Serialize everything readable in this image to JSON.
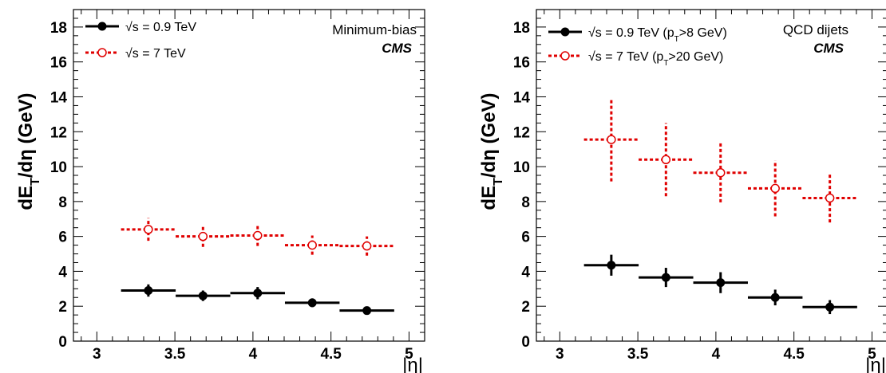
{
  "chart_data": [
    {
      "type": "scatter",
      "ylabel": "dE_T/dη (GeV)",
      "xlabel": "|η|",
      "xlim": [
        2.85,
        5.1
      ],
      "ylim": [
        0,
        19
      ],
      "xticks": [
        "3",
        "3.5",
        "4",
        "4.5",
        "5"
      ],
      "yticks": [
        "0",
        "2",
        "4",
        "6",
        "8",
        "10",
        "12",
        "14",
        "16",
        "18"
      ],
      "annotation": "Minimum-bias",
      "experiment": "CMS",
      "series": [
        {
          "name": "√s = 0.9 TeV",
          "color": "#000000",
          "marker": "filled-circle",
          "line": "solid",
          "x": [
            3.33,
            3.68,
            4.03,
            4.38,
            4.73
          ],
          "xerr": [
            0.175,
            0.175,
            0.175,
            0.175,
            0.175
          ],
          "y": [
            2.9,
            2.6,
            2.75,
            2.2,
            1.75
          ],
          "yerr": [
            0.35,
            0.3,
            0.35,
            0.25,
            0.2
          ]
        },
        {
          "name": "√s = 7 TeV",
          "color": "#e00000",
          "marker": "open-circle",
          "line": "dotted",
          "x": [
            3.33,
            3.68,
            4.03,
            4.38,
            4.73
          ],
          "xerr": [
            0.175,
            0.175,
            0.175,
            0.175,
            0.175
          ],
          "y": [
            6.4,
            6.0,
            6.05,
            5.5,
            5.45
          ],
          "yerr": [
            0.65,
            0.6,
            0.6,
            0.55,
            0.55
          ]
        }
      ]
    },
    {
      "type": "scatter",
      "ylabel": "dE_T/dη (GeV)",
      "xlabel": "|η|",
      "xlim": [
        2.85,
        5.1
      ],
      "ylim": [
        0,
        19
      ],
      "xticks": [
        "3",
        "3.5",
        "4",
        "4.5",
        "5"
      ],
      "yticks": [
        "0",
        "2",
        "4",
        "6",
        "8",
        "10",
        "12",
        "14",
        "16",
        "18"
      ],
      "annotation": "QCD dijets",
      "experiment": "CMS",
      "series": [
        {
          "name": "√s = 0.9 TeV (p_T>8 GeV)",
          "color": "#000000",
          "marker": "filled-circle",
          "line": "solid",
          "x": [
            3.33,
            3.68,
            4.03,
            4.38,
            4.73
          ],
          "xerr": [
            0.175,
            0.175,
            0.175,
            0.175,
            0.175
          ],
          "y": [
            4.35,
            3.65,
            3.35,
            2.5,
            1.95
          ],
          "yerr": [
            0.6,
            0.55,
            0.6,
            0.45,
            0.4
          ]
        },
        {
          "name": "√s = 7 TeV (p_T>20 GeV)",
          "color": "#e00000",
          "marker": "open-circle",
          "line": "dotted",
          "x": [
            3.33,
            3.68,
            4.03,
            4.38,
            4.73
          ],
          "xerr": [
            0.175,
            0.175,
            0.175,
            0.175,
            0.175
          ],
          "y": [
            11.55,
            10.4,
            9.65,
            8.75,
            8.2
          ],
          "yerr": [
            2.4,
            2.1,
            1.7,
            1.6,
            1.4
          ]
        }
      ]
    }
  ]
}
